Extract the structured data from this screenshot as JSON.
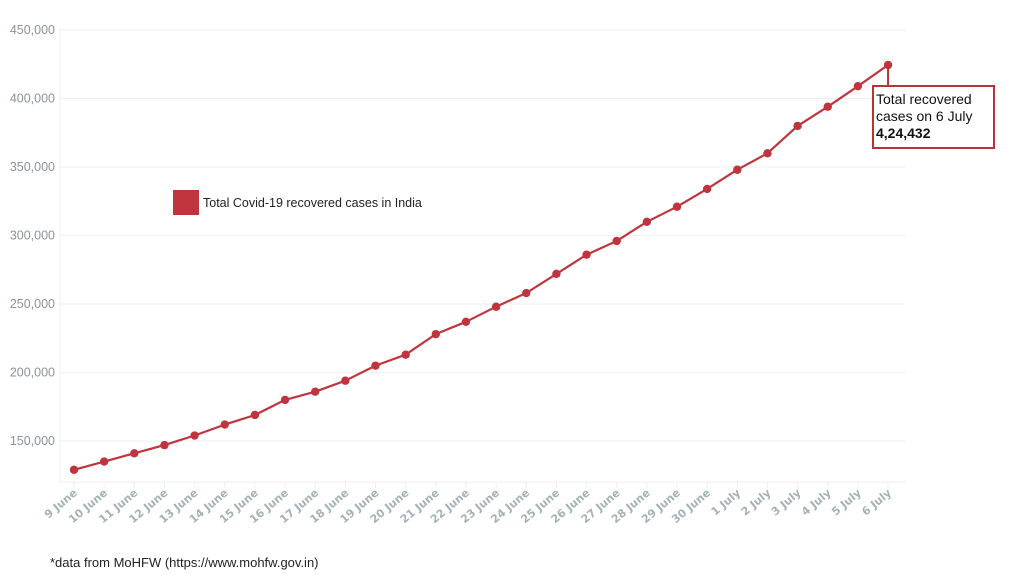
{
  "chart_data": {
    "type": "line",
    "title": "",
    "xlabel": "",
    "ylabel": "",
    "ylim": [
      120000,
      450000
    ],
    "yticks": [
      150000,
      200000,
      250000,
      300000,
      350000,
      400000,
      450000
    ],
    "ytick_labels": [
      "150,000",
      "200,000",
      "250,000",
      "300,000",
      "350,000",
      "400,000",
      "450,000"
    ],
    "grid": true,
    "legend_position": "upper-left (inside plot)",
    "categories": [
      "9 June",
      "10 June",
      "11 June",
      "12 June",
      "13 June",
      "14 June",
      "15 June",
      "16 June",
      "17 June",
      "18 June",
      "19 June",
      "20 June",
      "21 June",
      "22 June",
      "23 June",
      "24 June",
      "25 June",
      "26 June",
      "27 June",
      "28 June",
      "29 June",
      "30 June",
      "1 July",
      "2 July",
      "3 July",
      "4 July",
      "5 July",
      "6 July"
    ],
    "series": [
      {
        "name": "Total Covid-19 recovered cases in India",
        "color": "#c0343d",
        "values": [
          129000,
          135000,
          141000,
          147000,
          154000,
          162000,
          169000,
          180000,
          186000,
          194000,
          205000,
          213000,
          228000,
          237000,
          248000,
          258000,
          272000,
          286000,
          296000,
          310000,
          321000,
          334000,
          348000,
          360000,
          380000,
          394000,
          409000,
          424432
        ]
      }
    ],
    "annotations": [
      {
        "target": "6 July",
        "lines": [
          "Total recovered",
          "cases on 6 July"
        ],
        "value_label": "4,24,432"
      }
    ]
  },
  "legend": {
    "label": "Total Covid-19 recovered cases in India",
    "color": "#c0343d"
  },
  "annotation": {
    "line1": "Total recovered",
    "line2": "cases on 6 July",
    "value": "4,24,432"
  },
  "footer": {
    "source": "*data from MoHFW (https://www.mohfw.gov.in)"
  },
  "colors": {
    "line": "#c0343d",
    "marker": "#c0343d",
    "annotation_border": "#b8323a",
    "grid": "#eef1f2",
    "ytick": "#8a9499",
    "xtick": "#a5b2b5"
  }
}
